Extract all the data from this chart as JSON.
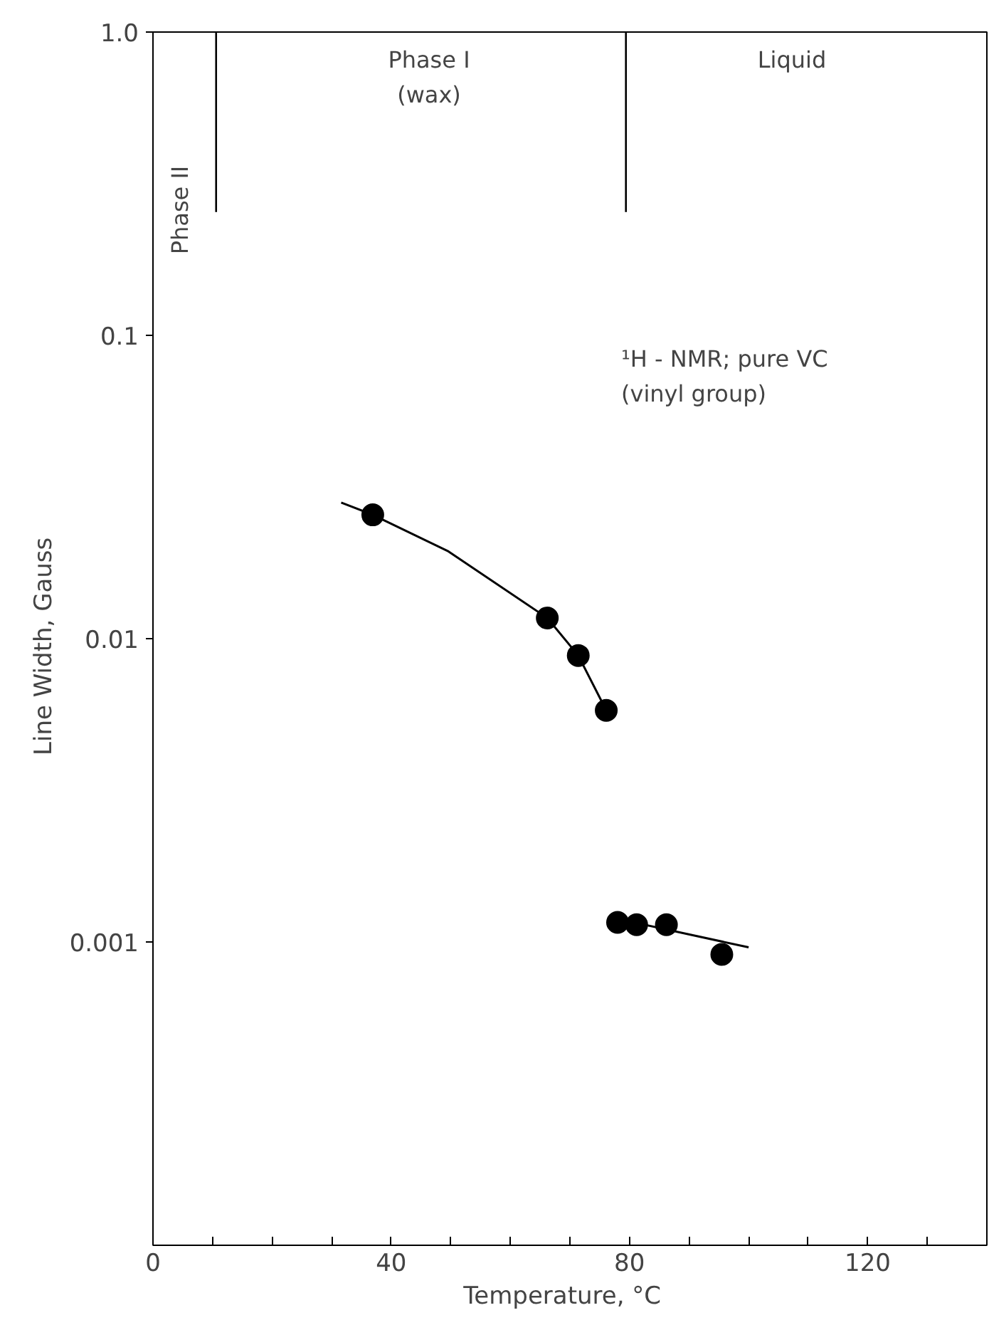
{
  "chart_data": {
    "type": "scatter",
    "xlabel": "Temperature,   °C",
    "ylabel": "Line Width,   Gauss",
    "log": "y",
    "grid": false,
    "xlim": [
      0,
      140
    ],
    "xticks": [
      0,
      {
        "value": 10,
        "label": null
      },
      {
        "value": 20,
        "label": null
      },
      {
        "value": 30,
        "label": null
      },
      40,
      {
        "value": 50,
        "label": null
      },
      {
        "value": 60,
        "label": null
      },
      {
        "value": 70,
        "label": null
      },
      80,
      {
        "value": 90,
        "label": null
      },
      {
        "value": 100,
        "label": null
      },
      {
        "value": 110,
        "label": null
      },
      120,
      {
        "value": 130,
        "label": null
      }
    ],
    "ylim": [
      0.0001,
      1
    ],
    "yticks": [
      0.001,
      0.01,
      0.1,
      {
        "value": 1,
        "label": "1.0"
      }
    ],
    "series": [
      {
        "marker": "circle",
        "color": "#000000",
        "x": [
          36.9,
          66.2,
          71.4,
          76.1,
          78.0,
          81.2,
          86.2,
          95.5
        ],
        "values": [
          0.0256,
          0.0117,
          0.0088,
          0.0058,
          0.00116,
          0.00114,
          0.00114,
          0.00091
        ]
      },
      {
        "type": "line",
        "color": "#000000",
        "x": [
          31.6,
          36.9,
          49.6,
          66.2,
          71.4,
          76.1
        ],
        "values": [
          0.0281,
          0.0256,
          0.0194,
          0.0117,
          0.0088,
          0.0058
        ]
      },
      {
        "type": "line",
        "color": "#000000",
        "x": [
          79.0,
          100.0
        ],
        "values": [
          0.00118,
          0.00096
        ]
      }
    ],
    "ref_lines": [
      {
        "axis": "x",
        "value": 10.6,
        "color": "#000000"
      },
      {
        "axis": "x",
        "value": 79.4,
        "color": "#000000"
      }
    ],
    "annotations": [
      "Phase II",
      "Phase I\n(wax)",
      "Liquid",
      "¹H - NMR; pure VC\n(vinyl group)"
    ]
  }
}
